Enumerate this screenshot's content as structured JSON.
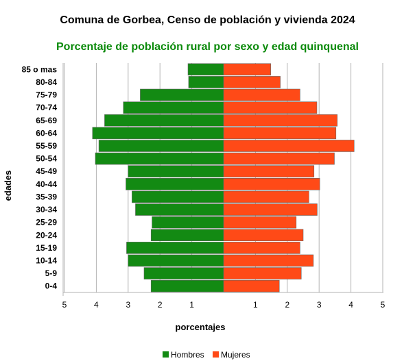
{
  "chart_data": {
    "type": "bar",
    "orientation": "horizontal",
    "layout": "population-pyramid",
    "title": "Comuna de Gorbea, Censo de población y vivienda 2024",
    "subtitle": "Porcentaje de población rural por sexo y edad quinquenal",
    "xlabel": "porcentajes",
    "ylabel": "edades",
    "xlim": [
      -5,
      5
    ],
    "x_ticks": [
      {
        "value": -5,
        "label": "5"
      },
      {
        "value": -4,
        "label": "4"
      },
      {
        "value": -3,
        "label": "3"
      },
      {
        "value": -2,
        "label": "2"
      },
      {
        "value": -1,
        "label": "1"
      },
      {
        "value": 1,
        "label": "1"
      },
      {
        "value": 2,
        "label": "2"
      },
      {
        "value": 3,
        "label": "3"
      },
      {
        "value": 4,
        "label": "4"
      },
      {
        "value": 5,
        "label": "5"
      }
    ],
    "grid": "vertical",
    "legend_position": "bottom-center",
    "categories": [
      "85 o mas",
      "80-84",
      "75-79",
      "70-74",
      "65-69",
      "60-64",
      "55-59",
      "50-54",
      "45-49",
      "40-44",
      "35-39",
      "30-34",
      "25-29",
      "20-24",
      "15-19",
      "10-14",
      "5-9",
      "0-4"
    ],
    "series": [
      {
        "name": "Hombres",
        "color": "#138a13",
        "side": "left",
        "values": [
          1.12,
          1.1,
          2.62,
          3.15,
          3.74,
          4.12,
          3.92,
          4.03,
          3.0,
          3.07,
          2.88,
          2.77,
          2.25,
          2.28,
          3.05,
          3.0,
          2.5,
          2.28
        ]
      },
      {
        "name": "Mujeres",
        "color": "#ff4a17",
        "side": "right",
        "values": [
          1.48,
          1.78,
          2.4,
          2.93,
          3.57,
          3.53,
          4.1,
          3.48,
          2.84,
          3.02,
          2.68,
          2.94,
          2.28,
          2.5,
          2.4,
          2.82,
          2.44,
          1.75
        ]
      }
    ]
  }
}
